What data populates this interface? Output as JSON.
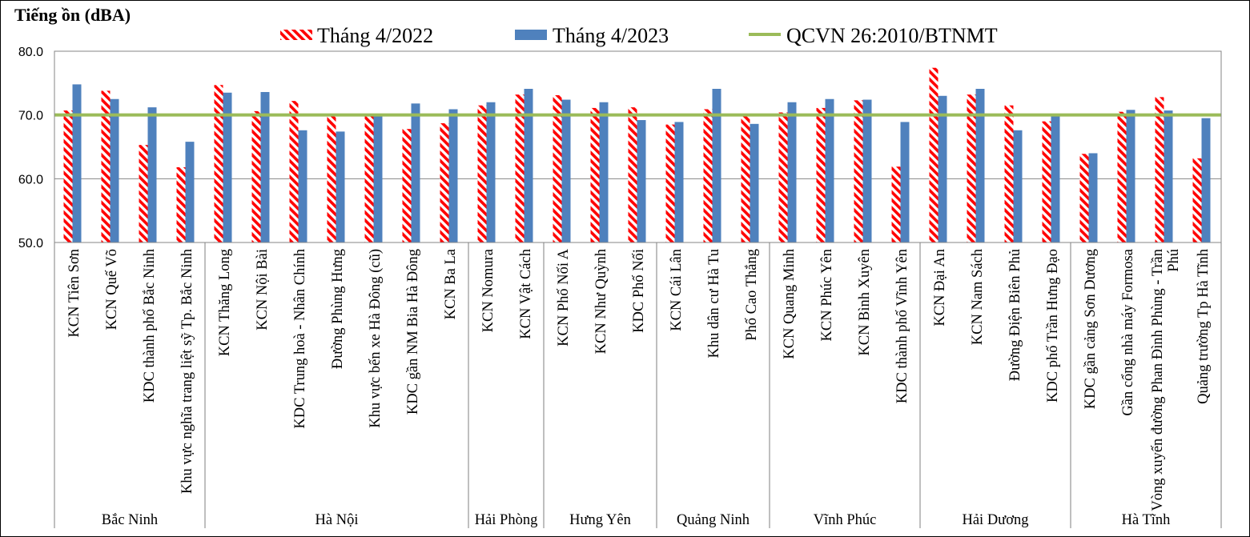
{
  "chart_data": {
    "type": "bar",
    "ylabel": "Tiếng ồn (dBA)",
    "xlabel": "",
    "ylim": [
      50,
      80
    ],
    "yticks": [
      "50.0",
      "60.0",
      "70.0",
      "80.0"
    ],
    "grid": true,
    "legend": "top",
    "groups": [
      {
        "name": "Bắc Ninh",
        "categories": [
          "KCN Tiên Sơn",
          "KCN Quế Võ",
          "KDC thành phố Bắc Ninh",
          "Khu vực nghĩa trang liệt sỹ Tp. Bắc Ninh"
        ]
      },
      {
        "name": "Hà Nội",
        "categories": [
          "KCN Thăng Long",
          "KCN Nội Bài",
          "KDC Trung hoà - Nhân Chính",
          "Đường Phùng Hưng",
          "Khu vực bến xe Hà Đông (cũ)",
          "KDC gần NM Bia Hà Đông",
          "KCN Ba La"
        ]
      },
      {
        "name": "Hải Phòng",
        "categories": [
          "KCN Nomura",
          "KCN Vật Cách"
        ]
      },
      {
        "name": "Hưng Yên",
        "categories": [
          "KCN Phố Nối A",
          "KCN Như Quỳnh",
          "KDC Phố Nối"
        ]
      },
      {
        "name": "Quảng Ninh",
        "categories": [
          "KCN Cái Lân",
          "Khu dân cư  Hà Tu",
          "Phố Cao Thắng"
        ]
      },
      {
        "name": "Vĩnh Phúc",
        "categories": [
          "KCN Quang Minh",
          "KCN Phúc Yên",
          "KCN Bình Xuyên",
          "KDC thành phố Vĩnh Yên"
        ]
      },
      {
        "name": "Hải Dương",
        "categories": [
          "KCN Đại An",
          "KCN Nam Sách",
          "Đường Điện Biên Phủ",
          "KDC phố Trần Hưng Đạo"
        ]
      },
      {
        "name": "Hà Tĩnh",
        "categories": [
          "KDC gần cảng Sơn Dương",
          "Gần cổng nhà máy Formosa",
          "Vòng xuyến đường Phan Đình Phùng - Trần Phú",
          "Quảng trường Tp Hà Tĩnh"
        ]
      }
    ],
    "series": [
      {
        "name": "Tháng 4/2022",
        "color": "#FF0000",
        "fill_pattern": "diagonal-hatch",
        "values": [
          70.7,
          73.8,
          65.3,
          61.8,
          74.7,
          70.6,
          72.2,
          69.9,
          70.2,
          67.8,
          68.7,
          71.5,
          73.2,
          73.1,
          71.1,
          71.2,
          68.5,
          70.9,
          69.9,
          70.4,
          71.1,
          72.3,
          61.9,
          77.4,
          73.2,
          71.5,
          69.0,
          63.9,
          70.5,
          72.8,
          63.2
        ]
      },
      {
        "name": "Tháng 4/2023",
        "color": "#4F81BD",
        "fill_pattern": "solid",
        "values": [
          74.8,
          72.5,
          71.2,
          65.8,
          73.5,
          73.6,
          67.6,
          67.4,
          70.0,
          71.8,
          70.9,
          72.0,
          74.1,
          72.4,
          72.0,
          69.2,
          68.9,
          74.1,
          68.6,
          72.0,
          72.5,
          72.4,
          68.9,
          73.0,
          74.1,
          67.6,
          69.8,
          64.0,
          70.8,
          70.7,
          69.5
        ]
      }
    ],
    "reference_line": {
      "name": "QCVN 26:2010/BTNMT",
      "value": 70,
      "color": "#9BBB59"
    }
  }
}
